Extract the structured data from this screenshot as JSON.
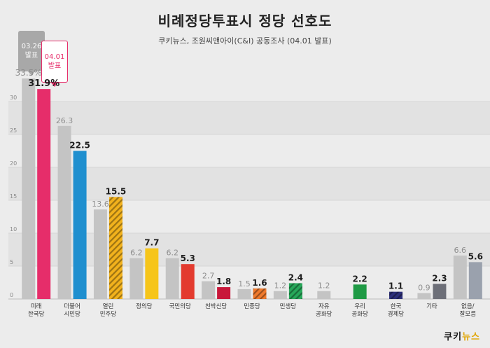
{
  "title": "비례정당투표시 정당 선호도",
  "subtitle": "쿠키뉴스, 조원씨앤아이(C&I) 공동조사 (04.01 발표)",
  "brand": {
    "main": "쿠키",
    "accent": "뉴스"
  },
  "legend": {
    "prev": "03.26\n발표",
    "curr": "04.01\n발표"
  },
  "chart_data": {
    "type": "bar",
    "title": "비례정당투표시 정당 선호도",
    "ylim": [
      0,
      35
    ],
    "yticks": [
      "0",
      "5",
      "10",
      "15",
      "20",
      "25",
      "30"
    ],
    "grid": true,
    "categories": [
      "미래\n한국당",
      "더불어\n시민당",
      "열린\n민주당",
      "정의당",
      "국민의당",
      "친박신당",
      "민중당",
      "민생당",
      "자유\n공화당",
      "우리\n공화당",
      "한국\n경제당",
      "기타",
      "없음/\n잘모름"
    ],
    "series": [
      {
        "name": "03.26 발표",
        "values": [
          33.5,
          26.3,
          13.6,
          6.2,
          6.2,
          2.7,
          1.5,
          1.2,
          1.2,
          null,
          null,
          0.9,
          6.6
        ],
        "labels": [
          "33.5%",
          "26.3",
          "13.6",
          "6.2",
          "6.2",
          "2.7",
          "1.5",
          "1.2",
          "1.2",
          "",
          "",
          "0.9",
          "6.6"
        ],
        "color": "#c4c4c4"
      },
      {
        "name": "04.01 발표",
        "values": [
          31.9,
          22.5,
          15.5,
          7.7,
          5.3,
          1.8,
          1.6,
          2.4,
          null,
          2.2,
          1.1,
          2.3,
          5.6
        ],
        "labels": [
          "31.9%",
          "22.5",
          "15.5",
          "7.7",
          "5.3",
          "1.8",
          "1.6",
          "2.4",
          "",
          "2.2",
          "1.1",
          "2.3",
          "5.6"
        ],
        "colors": [
          "#e62d6a",
          "#1f8fcf",
          "#f2b21d",
          "#f6c51a",
          "#e33b2f",
          "#c8173a",
          "#f07a2d",
          "#27a85a",
          "",
          "#1f9a45",
          "#2c2f7a",
          "#6d6f78",
          "#9aa1ad"
        ],
        "hatched": [
          false,
          false,
          true,
          false,
          false,
          false,
          true,
          true,
          false,
          false,
          true,
          false,
          false
        ]
      }
    ]
  }
}
